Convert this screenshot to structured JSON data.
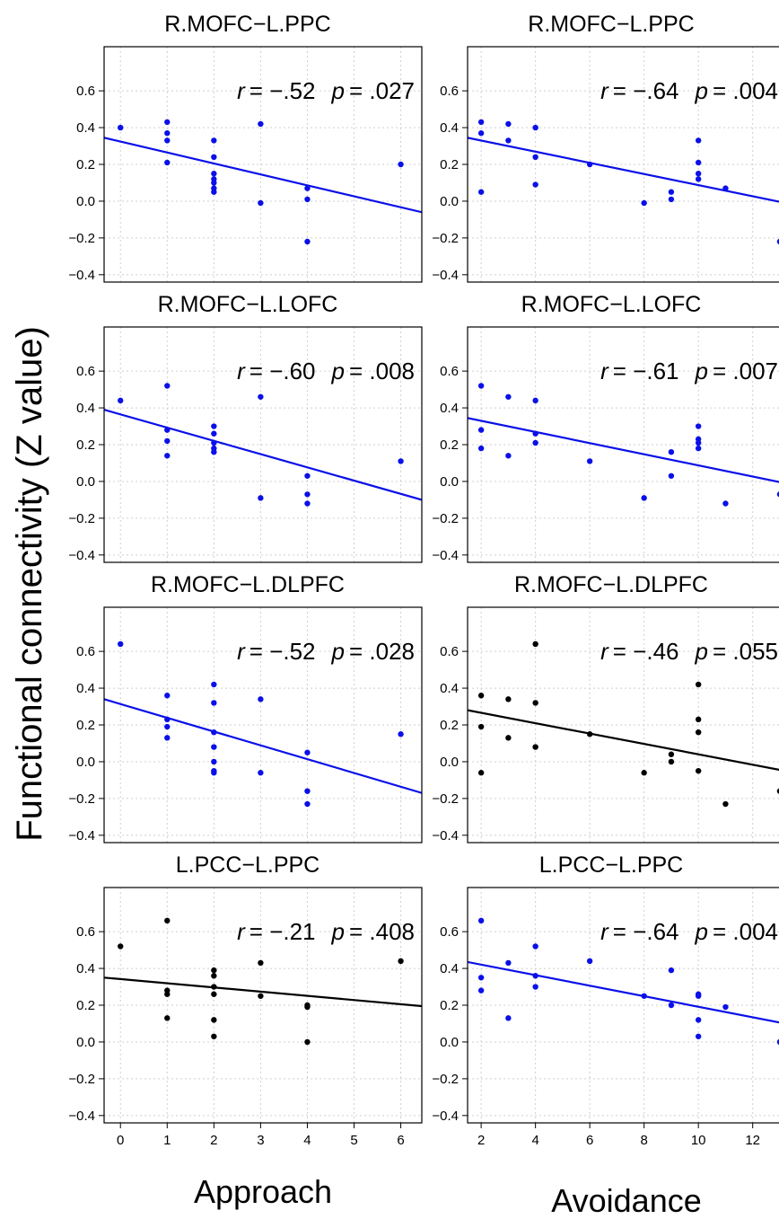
{
  "figure": {
    "ylabel": "Functional connectivity (Z value)",
    "columns": [
      {
        "xlabel": "Approach",
        "xticks": [
          0,
          1,
          2,
          3,
          4,
          5,
          6
        ],
        "xlim": [
          -0.35,
          6.45
        ]
      },
      {
        "xlabel": "Avoidance",
        "xticks": [
          2,
          4,
          6,
          8,
          10,
          12
        ],
        "xlim": [
          1.5,
          13.2
        ]
      }
    ],
    "yticks": [
      "0.6",
      "0.4",
      "0.2",
      "0.0",
      "−0.2",
      "−0.4"
    ],
    "yticks_bottom": [
      "0.6",
      "0.4",
      "0.2",
      "0.0",
      "−0.2",
      "−0.4"
    ],
    "ylim": [
      -0.44,
      0.84
    ]
  },
  "chart_data": [
    {
      "type": "scatter",
      "title": "R.MOFC−L.PPC",
      "r_label": "r",
      "r_value": "= −.52",
      "p_label": "p",
      "p_value": "= .027",
      "color": "#0a10e8",
      "xlim": [
        -0.35,
        6.45
      ],
      "ylim": [
        -0.44,
        0.84
      ],
      "points": [
        [
          0,
          0.4
        ],
        [
          1,
          0.43
        ],
        [
          1,
          0.37
        ],
        [
          1,
          0.33
        ],
        [
          1,
          0.21
        ],
        [
          2,
          0.33
        ],
        [
          2,
          0.24
        ],
        [
          2,
          0.15
        ],
        [
          2,
          0.12
        ],
        [
          2,
          0.1
        ],
        [
          2,
          0.07
        ],
        [
          2,
          0.05
        ],
        [
          3,
          0.42
        ],
        [
          3,
          -0.01
        ],
        [
          4,
          0.07
        ],
        [
          4,
          0.01
        ],
        [
          4,
          -0.22
        ],
        [
          6,
          0.2
        ]
      ],
      "fit": [
        [
          -0.35,
          0.345
        ],
        [
          6.45,
          -0.06
        ]
      ]
    },
    {
      "type": "scatter",
      "title": "R.MOFC−L.PPC",
      "r_label": "r",
      "r_value": "= −.64",
      "p_label": "p",
      "p_value": "= .004",
      "color": "#0a10e8",
      "xlim": [
        1.5,
        13.2
      ],
      "ylim": [
        -0.44,
        0.84
      ],
      "points": [
        [
          2,
          0.43
        ],
        [
          2,
          0.37
        ],
        [
          2,
          0.05
        ],
        [
          3,
          0.42
        ],
        [
          3,
          0.33
        ],
        [
          4,
          0.4
        ],
        [
          4,
          0.24
        ],
        [
          4,
          0.09
        ],
        [
          6,
          0.2
        ],
        [
          8,
          -0.01
        ],
        [
          9,
          0.05
        ],
        [
          9,
          0.01
        ],
        [
          10,
          0.33
        ],
        [
          10,
          0.21
        ],
        [
          10,
          0.15
        ],
        [
          10,
          0.12
        ],
        [
          11,
          0.07
        ],
        [
          13,
          -0.22
        ]
      ],
      "fit": [
        [
          1.5,
          0.345
        ],
        [
          13.2,
          -0.01
        ]
      ]
    },
    {
      "type": "scatter",
      "title": "R.MOFC−L.LOFC",
      "r_label": "r",
      "r_value": "= −.60",
      "p_label": "p",
      "p_value": "= .008",
      "color": "#0a10e8",
      "xlim": [
        -0.35,
        6.45
      ],
      "ylim": [
        -0.44,
        0.84
      ],
      "points": [
        [
          0,
          0.44
        ],
        [
          1,
          0.52
        ],
        [
          1,
          0.28
        ],
        [
          1,
          0.22
        ],
        [
          1,
          0.14
        ],
        [
          2,
          0.3
        ],
        [
          2,
          0.26
        ],
        [
          2,
          0.21
        ],
        [
          2,
          0.18
        ],
        [
          2,
          0.16
        ],
        [
          3,
          0.46
        ],
        [
          3,
          -0.09
        ],
        [
          4,
          0.03
        ],
        [
          4,
          -0.07
        ],
        [
          4,
          -0.12
        ],
        [
          6,
          0.11
        ]
      ],
      "fit": [
        [
          -0.35,
          0.39
        ],
        [
          6.45,
          -0.1
        ]
      ]
    },
    {
      "type": "scatter",
      "title": "R.MOFC−L.LOFC",
      "r_label": "r",
      "r_value": "= −.61",
      "p_label": "p",
      "p_value": "= .007",
      "color": "#0a10e8",
      "xlim": [
        1.5,
        13.2
      ],
      "ylim": [
        -0.44,
        0.84
      ],
      "points": [
        [
          2,
          0.52
        ],
        [
          2,
          0.28
        ],
        [
          2,
          0.18
        ],
        [
          3,
          0.46
        ],
        [
          3,
          0.14
        ],
        [
          4,
          0.44
        ],
        [
          4,
          0.26
        ],
        [
          4,
          0.21
        ],
        [
          6,
          0.11
        ],
        [
          8,
          -0.09
        ],
        [
          9,
          0.16
        ],
        [
          9,
          0.03
        ],
        [
          10,
          0.3
        ],
        [
          10,
          0.23
        ],
        [
          10,
          0.21
        ],
        [
          10,
          0.18
        ],
        [
          11,
          -0.12
        ],
        [
          13,
          -0.07
        ]
      ],
      "fit": [
        [
          1.5,
          0.345
        ],
        [
          13.2,
          -0.01
        ]
      ]
    },
    {
      "type": "scatter",
      "title": "R.MOFC−L.DLPFC",
      "r_label": "r",
      "r_value": "= −.52",
      "p_label": "p",
      "p_value": "= .028",
      "color": "#0a10e8",
      "xlim": [
        -0.35,
        6.45
      ],
      "ylim": [
        -0.44,
        0.84
      ],
      "points": [
        [
          0,
          0.64
        ],
        [
          1,
          0.36
        ],
        [
          1,
          0.23
        ],
        [
          1,
          0.19
        ],
        [
          1,
          0.13
        ],
        [
          2,
          0.42
        ],
        [
          2,
          0.32
        ],
        [
          2,
          0.16
        ],
        [
          2,
          0.08
        ],
        [
          2,
          0.0
        ],
        [
          2,
          -0.05
        ],
        [
          2,
          -0.06
        ],
        [
          3,
          0.34
        ],
        [
          3,
          -0.06
        ],
        [
          4,
          0.05
        ],
        [
          4,
          -0.16
        ],
        [
          4,
          -0.23
        ],
        [
          6,
          0.15
        ]
      ],
      "fit": [
        [
          -0.35,
          0.34
        ],
        [
          6.45,
          -0.17
        ]
      ]
    },
    {
      "type": "scatter",
      "title": "R.MOFC−L.DLPFC",
      "r_label": "r",
      "r_value": "= −.46",
      "p_label": "p",
      "p_value": "= .055",
      "color": "#000000",
      "xlim": [
        1.5,
        13.2
      ],
      "ylim": [
        -0.44,
        0.84
      ],
      "points": [
        [
          2,
          0.36
        ],
        [
          2,
          0.19
        ],
        [
          2,
          -0.06
        ],
        [
          3,
          0.34
        ],
        [
          3,
          0.13
        ],
        [
          4,
          0.64
        ],
        [
          4,
          0.32
        ],
        [
          4,
          0.08
        ],
        [
          6,
          0.15
        ],
        [
          8,
          -0.06
        ],
        [
          9,
          0.04
        ],
        [
          9,
          0.0
        ],
        [
          10,
          0.42
        ],
        [
          10,
          0.23
        ],
        [
          10,
          0.16
        ],
        [
          10,
          -0.05
        ],
        [
          11,
          -0.23
        ],
        [
          13,
          -0.16
        ]
      ],
      "fit": [
        [
          1.5,
          0.28
        ],
        [
          13.2,
          -0.05
        ]
      ]
    },
    {
      "type": "scatter",
      "title": "L.PCC−L.PPC",
      "r_label": "r",
      "r_value": "= −.21",
      "p_label": "p",
      "p_value": "= .408",
      "color": "#000000",
      "xlim": [
        -0.35,
        6.45
      ],
      "ylim": [
        -0.44,
        0.84
      ],
      "points": [
        [
          0,
          0.52
        ],
        [
          1,
          0.66
        ],
        [
          1,
          0.28
        ],
        [
          1,
          0.26
        ],
        [
          1,
          0.13
        ],
        [
          2,
          0.39
        ],
        [
          2,
          0.36
        ],
        [
          2,
          0.3
        ],
        [
          2,
          0.26
        ],
        [
          2,
          0.12
        ],
        [
          2,
          0.03
        ],
        [
          3,
          0.43
        ],
        [
          3,
          0.25
        ],
        [
          4,
          0.2
        ],
        [
          4,
          0.19
        ],
        [
          4,
          0.0
        ],
        [
          6,
          0.44
        ]
      ],
      "fit": [
        [
          -0.35,
          0.35
        ],
        [
          6.45,
          0.195
        ]
      ]
    },
    {
      "type": "scatter",
      "title": "L.PCC−L.PPC",
      "r_label": "r",
      "r_value": "= −.64",
      "p_label": "p",
      "p_value": "= .004",
      "color": "#0a10e8",
      "xlim": [
        1.5,
        13.2
      ],
      "ylim": [
        -0.44,
        0.84
      ],
      "points": [
        [
          2,
          0.66
        ],
        [
          2,
          0.35
        ],
        [
          2,
          0.28
        ],
        [
          3,
          0.43
        ],
        [
          3,
          0.13
        ],
        [
          4,
          0.52
        ],
        [
          4,
          0.36
        ],
        [
          4,
          0.3
        ],
        [
          6,
          0.44
        ],
        [
          8,
          0.25
        ],
        [
          9,
          0.39
        ],
        [
          9,
          0.2
        ],
        [
          10,
          0.26
        ],
        [
          10,
          0.25
        ],
        [
          10,
          0.12
        ],
        [
          10,
          0.03
        ],
        [
          11,
          0.19
        ],
        [
          13,
          0.0
        ]
      ],
      "fit": [
        [
          1.5,
          0.435
        ],
        [
          13.2,
          0.1
        ]
      ]
    }
  ]
}
